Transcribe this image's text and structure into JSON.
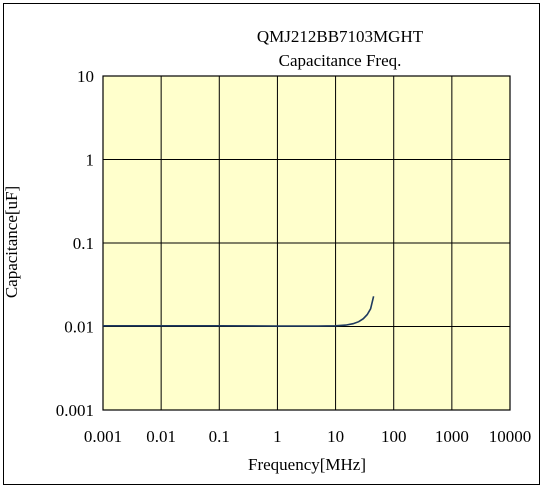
{
  "chart_data": {
    "type": "line",
    "title": "QMJ212BB7103MGHT",
    "subtitle": "Capacitance Freq.",
    "xlabel": "Frequency[MHz]",
    "ylabel": "Capacitance[uF]",
    "x_scale": "log",
    "y_scale": "log",
    "xlim": [
      0.001,
      10000
    ],
    "ylim": [
      0.001,
      10
    ],
    "grid": true,
    "plot_background": "#ffffcc",
    "series_color": "#1f3a5f",
    "x_ticks": [
      "0.001",
      "0.01",
      "0.1",
      "1",
      "10",
      "100",
      "1000",
      "10000"
    ],
    "y_ticks": [
      "10",
      "1",
      "0.1",
      "0.01",
      "0.001"
    ],
    "series": [
      {
        "x": [
          0.001,
          0.01,
          0.1,
          1,
          5,
          10,
          15,
          20,
          25,
          30,
          35,
          40,
          45
        ],
        "y": [
          0.0102,
          0.0102,
          0.0102,
          0.0101,
          0.0101,
          0.0102,
          0.0104,
          0.0108,
          0.0114,
          0.0124,
          0.0139,
          0.0163,
          0.023
        ]
      }
    ]
  }
}
